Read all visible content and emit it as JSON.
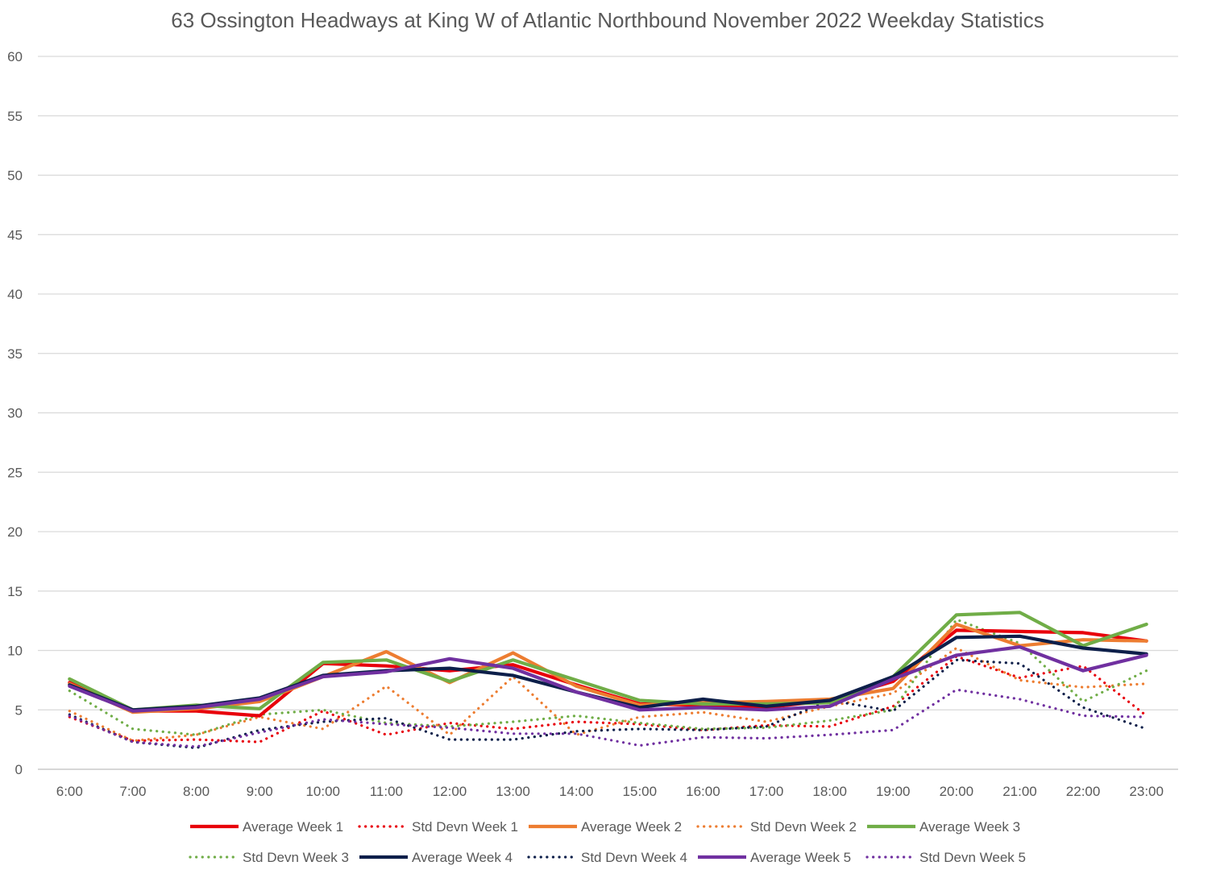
{
  "chart_data": {
    "type": "line",
    "title": "63 Ossington Headways at King W of Atlantic Northbound November 2022 Weekday Statistics",
    "xlabel": "",
    "ylabel": "",
    "ylim": [
      0,
      60
    ],
    "yticks": [
      0,
      5,
      10,
      15,
      20,
      25,
      30,
      35,
      40,
      45,
      50,
      55,
      60
    ],
    "grid": true,
    "legend_position": "bottom",
    "categories": [
      "6:00",
      "7:00",
      "8:00",
      "9:00",
      "10:00",
      "11:00",
      "12:00",
      "13:00",
      "14:00",
      "15:00",
      "16:00",
      "17:00",
      "18:00",
      "19:00",
      "20:00",
      "21:00",
      "22:00",
      "23:00"
    ],
    "series": [
      {
        "name": "Average Week 1",
        "style": "solid",
        "color": "#e8000b",
        "values": [
          7.3,
          4.9,
          4.9,
          4.5,
          8.9,
          8.7,
          8.3,
          8.8,
          7.1,
          5.5,
          5.4,
          5.2,
          5.8,
          7.4,
          11.7,
          11.6,
          11.5,
          10.8
        ]
      },
      {
        "name": "Std Devn Week 1",
        "style": "dotted",
        "color": "#e8000b",
        "values": [
          4.4,
          2.4,
          2.5,
          2.3,
          4.9,
          2.9,
          3.9,
          3.4,
          4.0,
          3.8,
          3.3,
          3.7,
          3.6,
          5.3,
          9.5,
          7.7,
          8.7,
          4.5
        ]
      },
      {
        "name": "Average Week 2",
        "style": "solid",
        "color": "#ed7d31",
        "values": [
          7.2,
          4.8,
          5.1,
          5.7,
          7.8,
          9.9,
          7.3,
          9.8,
          7.0,
          5.4,
          5.6,
          5.7,
          5.9,
          6.8,
          12.2,
          10.4,
          10.9,
          10.8
        ]
      },
      {
        "name": "Std Devn Week 2",
        "style": "dotted",
        "color": "#ed7d31",
        "values": [
          4.9,
          2.4,
          2.9,
          4.4,
          3.4,
          7.0,
          2.9,
          7.8,
          2.9,
          4.4,
          4.8,
          4.0,
          5.3,
          6.4,
          10.2,
          7.5,
          6.9,
          7.2
        ]
      },
      {
        "name": "Average Week 3",
        "style": "solid",
        "color": "#70ad47",
        "values": [
          7.6,
          5.0,
          5.4,
          5.1,
          9.0,
          9.2,
          7.4,
          9.2,
          7.5,
          5.8,
          5.5,
          5.5,
          5.6,
          7.8,
          13.0,
          13.2,
          10.4,
          12.2
        ]
      },
      {
        "name": "Std Devn Week 3",
        "style": "dotted",
        "color": "#70ad47",
        "values": [
          6.6,
          3.4,
          2.9,
          4.6,
          5.0,
          3.9,
          3.6,
          4.0,
          4.5,
          3.9,
          3.4,
          3.5,
          4.1,
          5.0,
          12.6,
          10.6,
          5.7,
          8.3
        ]
      },
      {
        "name": "Average Week 4",
        "style": "solid",
        "color": "#0d1f4a",
        "values": [
          7.1,
          5.0,
          5.3,
          6.0,
          7.9,
          8.3,
          8.5,
          7.9,
          6.5,
          5.2,
          5.9,
          5.3,
          5.8,
          7.8,
          11.1,
          11.2,
          10.2,
          9.7
        ]
      },
      {
        "name": "Std Devn Week 4",
        "style": "dotted",
        "color": "#0d1f4a",
        "values": [
          4.6,
          2.3,
          1.8,
          3.3,
          4.0,
          4.3,
          2.5,
          2.5,
          3.2,
          3.4,
          3.3,
          3.6,
          5.8,
          4.9,
          9.2,
          8.9,
          5.2,
          3.4
        ]
      },
      {
        "name": "Average Week 5",
        "style": "solid",
        "color": "#7030a0",
        "values": [
          7.0,
          4.9,
          5.2,
          5.9,
          7.8,
          8.2,
          9.3,
          8.5,
          6.5,
          5.0,
          5.2,
          5.0,
          5.3,
          7.6,
          9.6,
          10.3,
          8.3,
          9.6
        ]
      },
      {
        "name": "Std Devn Week 5",
        "style": "dotted",
        "color": "#7030a0",
        "values": [
          4.5,
          2.3,
          1.9,
          3.1,
          4.2,
          3.8,
          3.5,
          3.0,
          3.0,
          2.0,
          2.7,
          2.6,
          2.9,
          3.3,
          6.7,
          5.9,
          4.5,
          4.4
        ]
      }
    ]
  }
}
